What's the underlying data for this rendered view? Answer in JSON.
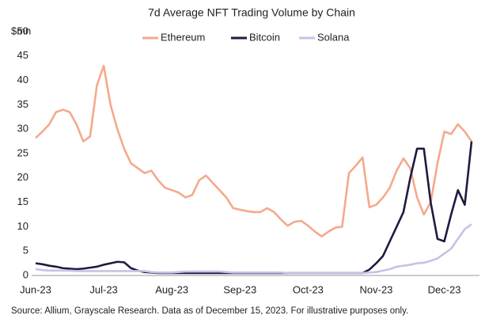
{
  "chart_data": {
    "type": "line",
    "title": "7d Average NFT Trading Volume by Chain",
    "y_axis_label": "$mn",
    "source": "Source: Allium, Grayscale Research. Data as of December 15, 2023. For illustrative purposes only.",
    "categories": [
      "Jun-23",
      null,
      null,
      null,
      null,
      null,
      null,
      null,
      null,
      null,
      "Jul-23",
      null,
      null,
      null,
      null,
      null,
      null,
      null,
      null,
      null,
      "Aug-23",
      null,
      null,
      null,
      null,
      null,
      null,
      null,
      null,
      null,
      "Sep-23",
      null,
      null,
      null,
      null,
      null,
      null,
      null,
      null,
      null,
      "Oct-23",
      null,
      null,
      null,
      null,
      null,
      null,
      null,
      null,
      null,
      "Nov-23",
      null,
      null,
      null,
      null,
      null,
      null,
      null,
      null,
      null,
      "Dec-23",
      null,
      null,
      null,
      null
    ],
    "series": [
      {
        "name": "Ethereum",
        "color": "#f4a98c",
        "values": [
          28.2,
          29.5,
          31,
          33.5,
          34,
          33.5,
          31,
          27.5,
          28.5,
          39,
          43,
          35,
          30,
          26,
          23,
          22,
          21,
          21.5,
          19.5,
          18,
          17.5,
          17,
          16,
          16.5,
          19.5,
          20.5,
          19,
          17.5,
          16,
          13.8,
          13.5,
          13.2,
          13,
          13,
          13.8,
          13,
          11.5,
          10.2,
          11,
          11.2,
          10.2,
          9,
          8,
          9,
          9.8,
          10,
          21,
          22.5,
          24.2,
          14,
          14.5,
          16,
          18,
          21.5,
          24,
          22,
          16,
          12.5,
          15,
          23,
          29.5,
          29,
          31,
          29.5,
          27.5
        ]
      },
      {
        "name": "Bitcoin",
        "color": "#1f1b3f",
        "values": [
          2.5,
          2.3,
          2,
          1.8,
          1.5,
          1.4,
          1.3,
          1.4,
          1.6,
          1.8,
          2.2,
          2.5,
          2.8,
          2.7,
          1.5,
          1,
          0.7,
          0.6,
          0.5,
          0.5,
          0.5,
          0.5,
          0.5,
          0.5,
          0.5,
          0.5,
          0.5,
          0.5,
          0.5,
          0.5,
          0.5,
          0.5,
          0.5,
          0.5,
          0.5,
          0.5,
          0.5,
          0.5,
          0.5,
          0.5,
          0.5,
          0.5,
          0.5,
          0.5,
          0.5,
          0.5,
          0.5,
          0.5,
          0.5,
          1.2,
          2.5,
          4,
          7,
          10,
          13,
          20,
          26,
          26,
          15,
          7.5,
          7,
          12.5,
          17.5,
          14.5,
          27.5
        ]
      },
      {
        "name": "Solana",
        "color": "#c5c3e6",
        "values": [
          1.3,
          1.1,
          1,
          1,
          1,
          1,
          0.9,
          0.9,
          0.9,
          0.9,
          0.9,
          0.9,
          0.9,
          0.9,
          0.9,
          0.9,
          0.9,
          0.7,
          0.6,
          0.6,
          0.6,
          0.7,
          0.8,
          0.8,
          0.8,
          0.8,
          0.8,
          0.8,
          0.7,
          0.6,
          0.6,
          0.6,
          0.6,
          0.6,
          0.6,
          0.6,
          0.6,
          0.5,
          0.5,
          0.5,
          0.5,
          0.5,
          0.5,
          0.5,
          0.5,
          0.5,
          0.5,
          0.5,
          0.5,
          0.6,
          0.7,
          1,
          1.3,
          1.8,
          2,
          2.2,
          2.5,
          2.6,
          3,
          3.5,
          4.5,
          5.5,
          7.5,
          9.5,
          10.5
        ]
      }
    ],
    "ylim": [
      0,
      50
    ],
    "yticks": [
      0,
      5,
      10,
      15,
      20,
      25,
      30,
      35,
      40,
      45,
      50
    ],
    "grid": false,
    "legend": "top"
  }
}
